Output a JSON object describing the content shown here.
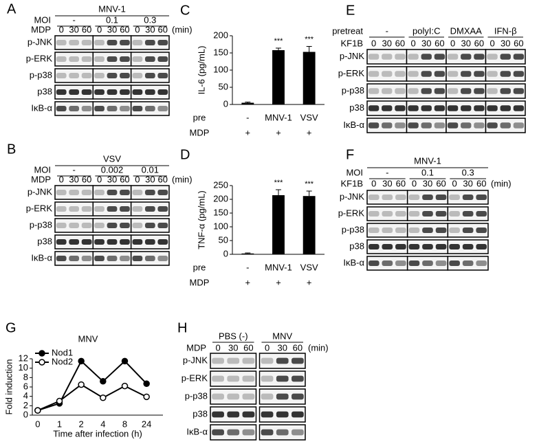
{
  "panel_letters": [
    "A",
    "B",
    "C",
    "D",
    "E",
    "F",
    "G",
    "H"
  ],
  "blots": {
    "A": {
      "title": "MNV-1",
      "group_label": "MOI",
      "groups": [
        "-",
        "0.1",
        "0.3"
      ],
      "time_label": "MDP",
      "times": [
        "0",
        "30",
        "60",
        "0",
        "30",
        "60",
        "0",
        "30",
        "60"
      ],
      "unit": "(min)",
      "rows": [
        "p-JNK",
        "p-ERK",
        "p-p38",
        "p38",
        "IκB-α"
      ]
    },
    "B": {
      "title": "VSV",
      "group_label": "MOI",
      "groups": [
        "-",
        "0.002",
        "0.01"
      ],
      "time_label": "MDP",
      "times": [
        "0",
        "30",
        "60",
        "0",
        "30",
        "60",
        "0",
        "30",
        "60"
      ],
      "unit": "(min)",
      "rows": [
        "p-JNK",
        "p-ERK",
        "p-p38",
        "p38",
        "IκB-α"
      ]
    },
    "E": {
      "group_label": "pretreat",
      "groups": [
        "-",
        "polyI:C",
        "DMXAA",
        "IFN-β"
      ],
      "time_label": "KF1B",
      "times": [
        "0",
        "30",
        "60",
        "0",
        "30",
        "60",
        "0",
        "30",
        "60",
        "0",
        "30",
        "60"
      ],
      "rows": [
        "p-JNK",
        "p-ERK",
        "p-p38",
        "p38",
        "IκB-α"
      ]
    },
    "F": {
      "title": "MNV-1",
      "group_label": "MOI",
      "groups": [
        "-",
        "0.1",
        "0.3"
      ],
      "time_label": "KF1B",
      "times": [
        "0",
        "30",
        "60",
        "0",
        "30",
        "60",
        "0",
        "30",
        "60"
      ],
      "unit": "(min)",
      "rows": [
        "p-JNK",
        "p-ERK",
        "p-p38",
        "p38",
        "IκB-α"
      ]
    },
    "H": {
      "groups": [
        "PBS (-)",
        "MNV"
      ],
      "time_label": "MDP",
      "times": [
        "0",
        "30",
        "60",
        "0",
        "30",
        "60"
      ],
      "unit": "(min)",
      "rows": [
        "p-JNK",
        "p-ERK",
        "p-p38",
        "p38",
        "IκB-α"
      ]
    }
  },
  "chart_data": [
    {
      "type": "bar",
      "ylabel": "IL-6 (pg/mL)",
      "category_label": "pre",
      "categories": [
        "-",
        "MNV-1",
        "VSV"
      ],
      "rows": [
        {
          "label": "MDP",
          "labels": [
            "+",
            "+",
            "+"
          ]
        }
      ],
      "values": [
        5,
        158,
        153
      ],
      "errors": [
        2,
        6,
        16
      ],
      "annotations": [
        null,
        "***",
        "***"
      ],
      "color": "#000000",
      "ylim": [
        0,
        200
      ],
      "yticks": [
        0,
        50,
        100,
        150,
        200
      ]
    },
    {
      "type": "bar",
      "ylabel": "TNF-α (pg/mL)",
      "category_label": "pre",
      "categories": [
        "-",
        "MNV-1",
        "VSV"
      ],
      "rows": [
        {
          "label": "MDP",
          "labels": [
            "+",
            "+",
            "+"
          ]
        }
      ],
      "values": [
        3,
        215,
        212
      ],
      "errors": [
        2,
        20,
        18
      ],
      "annotations": [
        null,
        "***",
        "***"
      ],
      "color": "#000000",
      "ylim": [
        0,
        250
      ],
      "yticks": [
        0,
        50,
        100,
        150,
        200,
        250
      ]
    },
    {
      "type": "line",
      "title": "MNV",
      "xlabel": "Time after infection (h)",
      "ylabel": "Fold induction",
      "categories": [
        "0",
        "1",
        "2",
        "4",
        "8",
        "24"
      ],
      "series": [
        {
          "name": "Nod1",
          "color": "#000000",
          "marker": "filled",
          "values": [
            1,
            2.5,
            11.5,
            7.2,
            11.5,
            6.7
          ]
        },
        {
          "name": "Nod2",
          "color": "#000000",
          "marker": "open",
          "values": [
            1,
            3,
            6.5,
            3.7,
            6.2,
            3.9
          ]
        }
      ],
      "ylim": [
        0,
        12
      ],
      "yticks": [
        0,
        2,
        4,
        6,
        8,
        10,
        12
      ],
      "legend": "upper left"
    }
  ]
}
